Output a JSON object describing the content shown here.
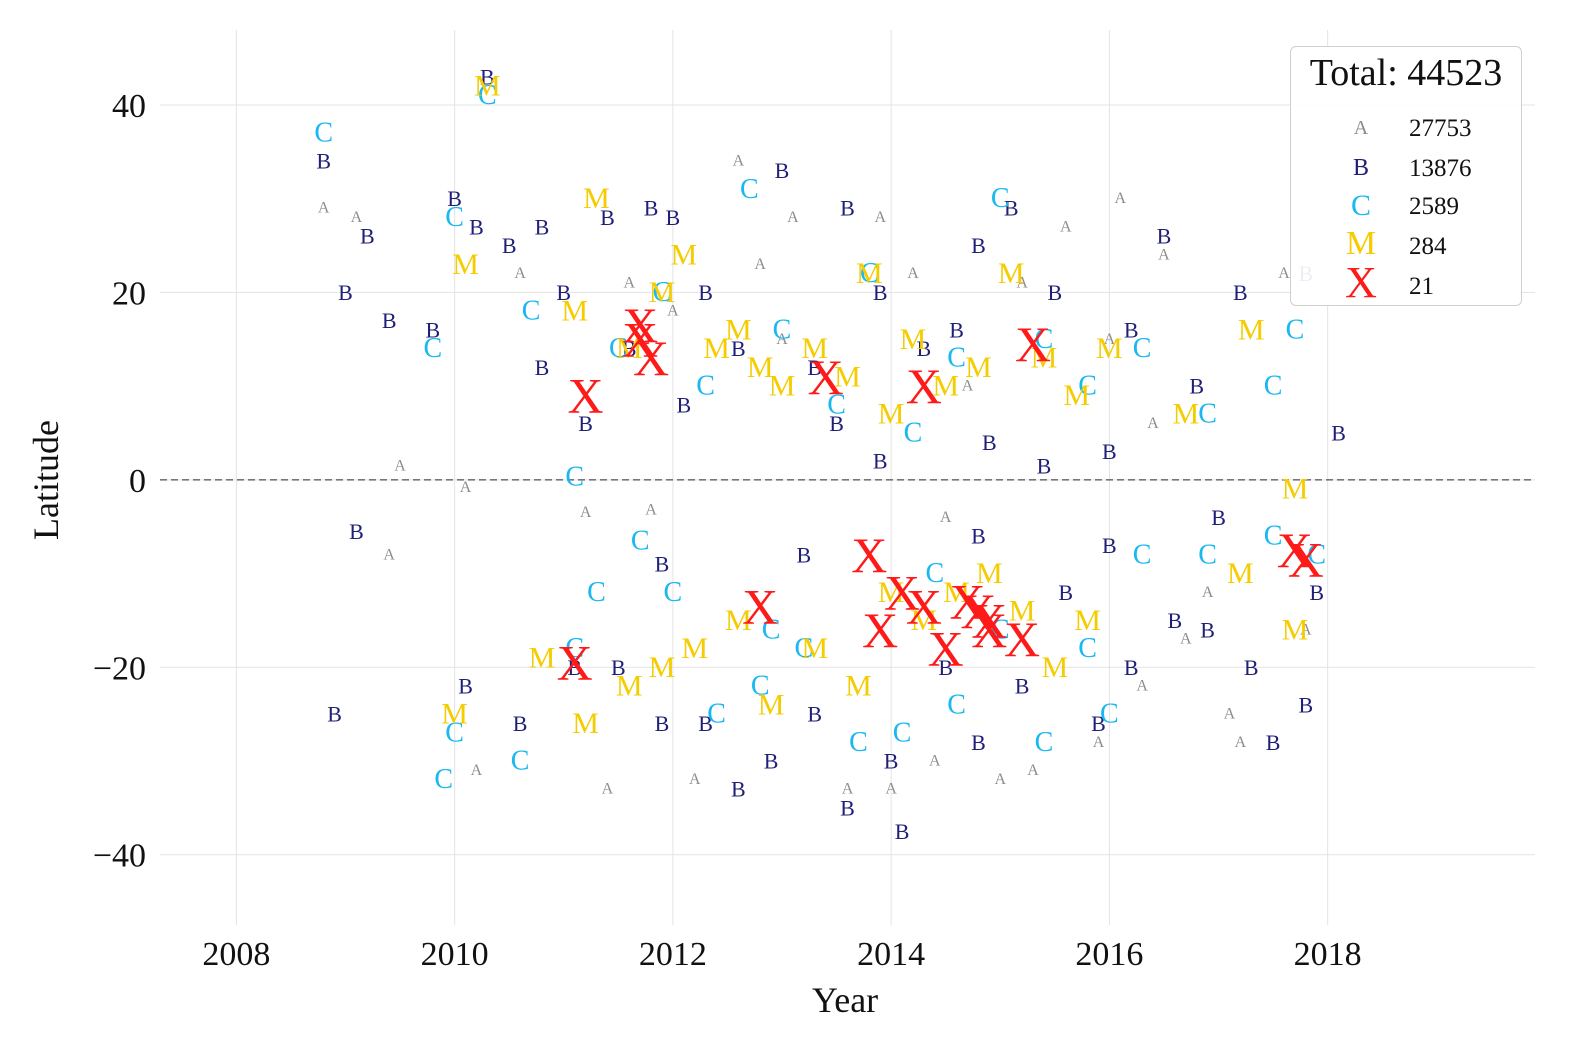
{
  "chart_data": {
    "type": "scatter",
    "title": "",
    "xlabel": "Year",
    "ylabel": "Latitude",
    "xlim": [
      2007.3,
      2019.9
    ],
    "ylim": [
      -47.5,
      48
    ],
    "xticks": [
      "2008",
      "2010",
      "2012",
      "2014",
      "2016",
      "2018"
    ],
    "yticks": [
      "40",
      "20",
      "0",
      "−20",
      "−40"
    ],
    "grid": true,
    "zero_line": {
      "y": 0,
      "style": "dashed",
      "color": "#777777"
    },
    "legend": {
      "placement": "top-right",
      "title": "Total: 44523",
      "entries": [
        {
          "marker": "A",
          "count": "27753",
          "color": "#8c8c8c"
        },
        {
          "marker": "B",
          "count": "13876",
          "color": "#1f1f78"
        },
        {
          "marker": "C",
          "count": "2589",
          "color": "#1ab8f0"
        },
        {
          "marker": "M",
          "count": "284",
          "color": "#f5cc00"
        },
        {
          "marker": "X",
          "count": "21",
          "color": "#ff1a1a"
        }
      ]
    },
    "series": [
      {
        "name": "A",
        "color": "#8c8c8c",
        "points": [
          [
            2008.8,
            29
          ],
          [
            2009.1,
            28
          ],
          [
            2009.5,
            1.5
          ],
          [
            2010.1,
            -0.8
          ],
          [
            2011.2,
            -3.5
          ],
          [
            2011.8,
            -3.2
          ],
          [
            2012.6,
            34
          ],
          [
            2013.1,
            28
          ],
          [
            2013.9,
            28
          ],
          [
            2014.5,
            -4
          ],
          [
            2015.6,
            27
          ],
          [
            2016.1,
            30
          ],
          [
            2016.5,
            24
          ],
          [
            2016.9,
            -12
          ],
          [
            2017.1,
            -25
          ],
          [
            2017.6,
            22
          ],
          [
            2009.4,
            -8
          ],
          [
            2010.2,
            -31
          ],
          [
            2011.4,
            -33
          ],
          [
            2012.2,
            -32
          ],
          [
            2013.6,
            -33
          ],
          [
            2014.0,
            -33
          ],
          [
            2014.4,
            -30
          ],
          [
            2015.0,
            -32
          ],
          [
            2015.3,
            -31
          ],
          [
            2015.9,
            -28
          ],
          [
            2016.3,
            -22
          ],
          [
            2016.7,
            -17
          ],
          [
            2017.2,
            -28
          ],
          [
            2017.8,
            -16
          ],
          [
            2012.0,
            18
          ],
          [
            2013.0,
            15
          ],
          [
            2014.7,
            10
          ],
          [
            2016.4,
            6
          ],
          [
            2010.6,
            22
          ],
          [
            2011.6,
            21
          ],
          [
            2012.8,
            23
          ],
          [
            2014.2,
            22
          ],
          [
            2015.2,
            21
          ],
          [
            2016.0,
            15
          ]
        ]
      },
      {
        "name": "B",
        "color": "#1f1f78",
        "points": [
          [
            2008.8,
            34
          ],
          [
            2008.9,
            -25
          ],
          [
            2009.0,
            20
          ],
          [
            2009.1,
            -5.5
          ],
          [
            2009.2,
            26
          ],
          [
            2009.4,
            17
          ],
          [
            2009.8,
            16
          ],
          [
            2010.0,
            30
          ],
          [
            2010.2,
            27
          ],
          [
            2010.3,
            43
          ],
          [
            2010.5,
            25
          ],
          [
            2010.8,
            27
          ],
          [
            2011.0,
            20
          ],
          [
            2011.4,
            28
          ],
          [
            2011.6,
            14
          ],
          [
            2011.8,
            29
          ],
          [
            2012.0,
            28
          ],
          [
            2012.3,
            20
          ],
          [
            2012.6,
            14
          ],
          [
            2013.0,
            33
          ],
          [
            2013.3,
            12
          ],
          [
            2013.6,
            29
          ],
          [
            2013.9,
            20
          ],
          [
            2014.1,
            -37.5
          ],
          [
            2014.3,
            14
          ],
          [
            2014.6,
            16
          ],
          [
            2014.8,
            25
          ],
          [
            2015.1,
            29
          ],
          [
            2015.5,
            20
          ],
          [
            2015.9,
            -26
          ],
          [
            2016.2,
            16
          ],
          [
            2016.5,
            26
          ],
          [
            2016.8,
            10
          ],
          [
            2017.0,
            -4
          ],
          [
            2017.2,
            20
          ],
          [
            2017.5,
            -28
          ],
          [
            2017.8,
            22
          ],
          [
            2017.9,
            -12
          ],
          [
            2018.1,
            5
          ],
          [
            2010.1,
            -22
          ],
          [
            2010.6,
            -26
          ],
          [
            2011.1,
            -20
          ],
          [
            2011.5,
            -20
          ],
          [
            2011.9,
            -26
          ],
          [
            2012.3,
            -26
          ],
          [
            2012.6,
            -33
          ],
          [
            2012.9,
            -30
          ],
          [
            2013.3,
            -25
          ],
          [
            2013.6,
            -35
          ],
          [
            2014.0,
            -30
          ],
          [
            2014.5,
            -20
          ],
          [
            2014.8,
            -28
          ],
          [
            2015.2,
            -22
          ],
          [
            2015.6,
            -12
          ],
          [
            2016.2,
            -20
          ],
          [
            2016.6,
            -15
          ],
          [
            2016.9,
            -16
          ],
          [
            2017.3,
            -20
          ],
          [
            2017.8,
            -24
          ],
          [
            2012.1,
            8
          ],
          [
            2013.5,
            6
          ],
          [
            2014.9,
            4
          ],
          [
            2016.0,
            3
          ],
          [
            2010.8,
            12
          ],
          [
            2011.2,
            6
          ],
          [
            2013.9,
            2
          ],
          [
            2015.4,
            1.5
          ],
          [
            2011.9,
            -9
          ],
          [
            2013.2,
            -8
          ],
          [
            2014.8,
            -6
          ],
          [
            2016.0,
            -7
          ]
        ]
      },
      {
        "name": "C",
        "color": "#1ab8f0",
        "points": [
          [
            2008.8,
            37
          ],
          [
            2009.8,
            14
          ],
          [
            2010.0,
            28
          ],
          [
            2010.3,
            41
          ],
          [
            2010.7,
            18
          ],
          [
            2011.1,
            0.3
          ],
          [
            2011.5,
            14
          ],
          [
            2011.9,
            20
          ],
          [
            2012.3,
            10
          ],
          [
            2012.7,
            31
          ],
          [
            2013.0,
            16
          ],
          [
            2013.5,
            8
          ],
          [
            2013.8,
            22
          ],
          [
            2014.2,
            5
          ],
          [
            2014.6,
            13
          ],
          [
            2015.0,
            30
          ],
          [
            2015.4,
            15
          ],
          [
            2015.8,
            10
          ],
          [
            2016.3,
            14
          ],
          [
            2016.9,
            7
          ],
          [
            2017.5,
            10
          ],
          [
            2017.7,
            16
          ],
          [
            2009.9,
            -32
          ],
          [
            2010.0,
            -27
          ],
          [
            2010.6,
            -30
          ],
          [
            2011.1,
            -18
          ],
          [
            2011.7,
            -6.5
          ],
          [
            2012.0,
            -12
          ],
          [
            2012.4,
            -25
          ],
          [
            2012.8,
            -22
          ],
          [
            2013.2,
            -18
          ],
          [
            2013.7,
            -28
          ],
          [
            2014.1,
            -27
          ],
          [
            2014.6,
            -24
          ],
          [
            2015.0,
            -16
          ],
          [
            2015.4,
            -28
          ],
          [
            2016.0,
            -25
          ],
          [
            2016.3,
            -8
          ],
          [
            2016.9,
            -8
          ],
          [
            2017.5,
            -6
          ],
          [
            2017.9,
            -8
          ],
          [
            2011.3,
            -12
          ],
          [
            2012.9,
            -16
          ],
          [
            2014.4,
            -10
          ],
          [
            2015.8,
            -18
          ]
        ]
      },
      {
        "name": "M",
        "color": "#f5cc00",
        "points": [
          [
            2010.1,
            23
          ],
          [
            2010.3,
            42
          ],
          [
            2011.1,
            18
          ],
          [
            2011.3,
            30
          ],
          [
            2011.6,
            14
          ],
          [
            2011.9,
            20
          ],
          [
            2012.1,
            24
          ],
          [
            2012.4,
            14
          ],
          [
            2012.6,
            16
          ],
          [
            2012.8,
            12
          ],
          [
            2013.0,
            10
          ],
          [
            2013.3,
            14
          ],
          [
            2013.6,
            11
          ],
          [
            2013.8,
            22
          ],
          [
            2014.0,
            7
          ],
          [
            2014.2,
            15
          ],
          [
            2014.5,
            10
          ],
          [
            2014.8,
            12
          ],
          [
            2015.1,
            22
          ],
          [
            2015.4,
            13
          ],
          [
            2015.7,
            9
          ],
          [
            2016.0,
            14
          ],
          [
            2016.7,
            7
          ],
          [
            2017.3,
            16
          ],
          [
            2017.7,
            -1
          ],
          [
            2010.0,
            -25
          ],
          [
            2010.8,
            -19
          ],
          [
            2011.2,
            -26
          ],
          [
            2011.6,
            -22
          ],
          [
            2011.9,
            -20
          ],
          [
            2012.2,
            -18
          ],
          [
            2012.6,
            -15
          ],
          [
            2012.9,
            -24
          ],
          [
            2013.3,
            -18
          ],
          [
            2013.7,
            -22
          ],
          [
            2014.0,
            -12
          ],
          [
            2014.3,
            -15
          ],
          [
            2014.6,
            -12
          ],
          [
            2014.9,
            -10
          ],
          [
            2015.2,
            -14
          ],
          [
            2015.5,
            -20
          ],
          [
            2015.8,
            -15
          ],
          [
            2017.2,
            -10
          ],
          [
            2017.7,
            -16
          ]
        ]
      },
      {
        "name": "X",
        "color": "#ff1a1a",
        "points": [
          [
            2011.1,
            -19.5
          ],
          [
            2011.2,
            9
          ],
          [
            2011.7,
            15
          ],
          [
            2011.8,
            13
          ],
          [
            2012.8,
            -13.5
          ],
          [
            2013.4,
            11
          ],
          [
            2013.8,
            -8
          ],
          [
            2013.9,
            -16
          ],
          [
            2014.1,
            -12
          ],
          [
            2014.3,
            -13.5
          ],
          [
            2014.3,
            10
          ],
          [
            2014.5,
            -18
          ],
          [
            2014.8,
            -14
          ],
          [
            2014.9,
            -15
          ],
          [
            2014.9,
            -16
          ],
          [
            2015.2,
            -17
          ],
          [
            2015.3,
            14.5
          ],
          [
            2017.7,
            -7.5
          ],
          [
            2017.8,
            -8.5
          ],
          [
            2011.7,
            16.5
          ],
          [
            2014.7,
            -13
          ]
        ]
      }
    ]
  }
}
